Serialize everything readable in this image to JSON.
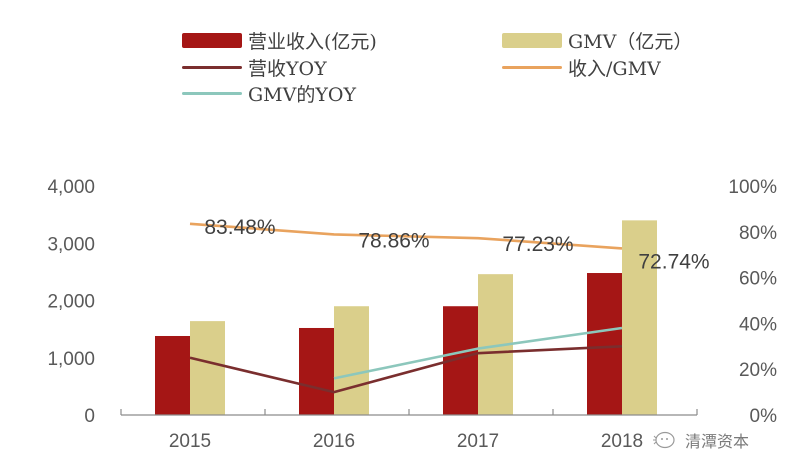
{
  "legend": {
    "items": [
      {
        "label": "营业收入(亿元)",
        "kind": "bar",
        "color": "#A51615"
      },
      {
        "label": "GMV（亿元）",
        "kind": "bar",
        "color": "#DACF8B"
      },
      {
        "label": "营收YOY",
        "kind": "line",
        "color": "#7A2E2E"
      },
      {
        "label": "收入/GMV",
        "kind": "line",
        "color": "#E9A35E"
      },
      {
        "label": "GMV的YOY",
        "kind": "line",
        "color": "#8CC7BC"
      }
    ]
  },
  "watermark": {
    "text": "清潭资本",
    "icon": "wechat-icon"
  },
  "chart_data": {
    "type": "bar",
    "title": "",
    "categories": [
      "2015",
      "2016",
      "2017",
      "2018"
    ],
    "xlabel": "",
    "ylabel": "",
    "ylim": [
      0,
      4000
    ],
    "y2lim": [
      0,
      1.0
    ],
    "yticks": [
      "0",
      "1,000",
      "2,000",
      "3,000",
      "4,000"
    ],
    "y2ticks": [
      "0%",
      "20%",
      "40%",
      "60%",
      "80%",
      "100%"
    ],
    "grid": false,
    "legend_position": "top",
    "series": [
      {
        "name": "营业收入(亿元)",
        "type": "bar",
        "axis": "left",
        "color": "#A51615",
        "values": [
          1380,
          1520,
          1900,
          2480
        ]
      },
      {
        "name": "GMV（亿元）",
        "type": "bar",
        "axis": "left",
        "color": "#DACF8B",
        "values": [
          1640,
          1900,
          2460,
          3400
        ]
      },
      {
        "name": "营收YOY",
        "type": "line",
        "axis": "right",
        "color": "#7A2E2E",
        "values": [
          0.25,
          0.1,
          0.27,
          0.3
        ]
      },
      {
        "name": "收入/GMV",
        "type": "line",
        "axis": "right",
        "color": "#E9A35E",
        "values": [
          0.8348,
          0.7886,
          0.7723,
          0.7274
        ],
        "labels": [
          "83.48%",
          "78.86%",
          "77.23%",
          "72.74%"
        ]
      },
      {
        "name": "GMV的YOY",
        "type": "line",
        "axis": "right",
        "color": "#8CC7BC",
        "values": [
          null,
          0.16,
          0.29,
          0.38
        ]
      }
    ]
  }
}
